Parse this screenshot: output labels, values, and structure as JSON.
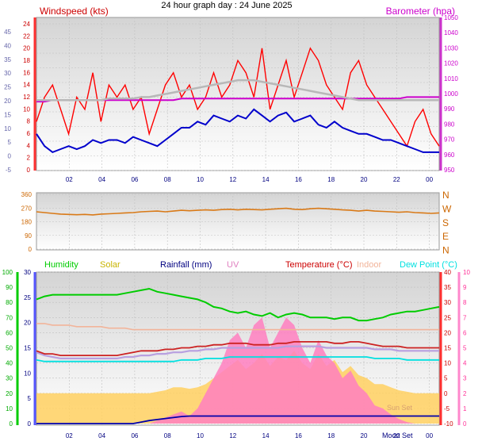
{
  "title": "24 hour graph day : 24 June 2025",
  "colors": {
    "gust": "#ff0000",
    "avg_wind": "#0000cc",
    "baro": "#cc00cc",
    "baro_avg": "#b8b8b8",
    "wind_dir": "#d97a18",
    "humidity": "#00cc00",
    "temperature": "#cc2222",
    "indoor": "#f2b49a",
    "dewpoint": "#00e0e0",
    "solar": "#ffd060",
    "uv": "#ff7fc0",
    "rainfall": "#0000aa",
    "mauve": "#b8a0e0"
  },
  "x_ticks": [
    "02",
    "04",
    "06",
    "08",
    "10",
    "12",
    "14",
    "16",
    "18",
    "20",
    "22",
    "00"
  ],
  "chart_data": [
    {
      "type": "line",
      "ylabel": "Windspeed (kts)",
      "y2label": "Barometer (hpa)",
      "y_left_kts": {
        "ticks": [
          "24",
          "22",
          "20",
          "18",
          "16",
          "14",
          "12",
          "10",
          "8",
          "6",
          "4",
          "2",
          "0"
        ],
        "ylim": [
          0,
          24
        ]
      },
      "y_left_mps": {
        "ticks": [
          "45",
          "40",
          "35",
          "30",
          "25",
          "20",
          "15",
          "10",
          "5",
          "0",
          "-5"
        ],
        "ylim": [
          -5,
          45
        ]
      },
      "y_right_hpa": {
        "ticks": [
          "1050",
          "1040",
          "1030",
          "1020",
          "1010",
          "1000",
          "990",
          "980",
          "970",
          "960",
          "950"
        ],
        "ylim": [
          950,
          1050
        ]
      },
      "series": [
        {
          "key": "gust",
          "values": [
            8,
            12,
            14,
            10,
            6,
            12,
            10,
            16,
            8,
            14,
            12,
            14,
            10,
            12,
            6,
            10,
            14,
            16,
            12,
            14,
            10,
            12,
            16,
            12,
            14,
            18,
            16,
            12,
            20,
            10,
            14,
            18,
            12,
            16,
            20,
            18,
            14,
            12,
            10,
            16,
            18,
            14,
            12,
            10,
            8,
            6,
            4,
            8,
            10,
            6,
            4
          ]
        },
        {
          "key": "avg_wind",
          "values": [
            6,
            4,
            3,
            3.5,
            4,
            3.5,
            4,
            5,
            4.5,
            5,
            5,
            4.5,
            5.5,
            5,
            4.5,
            4,
            5,
            6,
            7,
            7,
            8,
            7.5,
            9,
            8.5,
            8,
            9,
            8.5,
            10,
            9,
            8,
            9,
            9.5,
            8,
            8.5,
            9,
            7.5,
            7,
            8,
            7,
            6.5,
            6,
            6,
            5.5,
            5,
            5,
            4.5,
            4,
            3.5,
            3,
            3,
            3
          ]
        },
        {
          "key": "baro",
          "values": [
            995,
            995,
            996,
            996,
            996,
            996,
            996,
            996,
            996,
            996,
            996,
            996,
            996,
            996,
            996,
            996,
            996,
            996,
            997,
            997,
            997,
            997,
            997,
            997,
            997,
            997,
            997,
            997,
            997,
            997,
            997,
            997,
            997,
            997,
            997,
            997,
            997,
            997,
            997,
            997,
            997,
            997,
            997,
            997,
            997,
            997,
            998,
            998,
            998,
            998,
            998
          ]
        },
        {
          "key": "baro_avg",
          "values": [
            996,
            996,
            996,
            996,
            996,
            996,
            996,
            996,
            996,
            997,
            997,
            997,
            997,
            998,
            998,
            999,
            1000,
            1001,
            1002,
            1003,
            1004,
            1005,
            1006,
            1007,
            1008,
            1009,
            1009,
            1009,
            1008,
            1007,
            1006,
            1005,
            1004,
            1003,
            1002,
            1001,
            1000,
            999,
            998,
            997,
            996,
            996,
            996,
            996,
            996,
            996,
            996,
            996,
            996,
            996,
            996
          ]
        }
      ]
    },
    {
      "type": "line",
      "ylabel": "Wind direction",
      "y_ticks": [
        "360",
        "270",
        "180",
        "90",
        "0"
      ],
      "ylim": [
        0,
        360
      ],
      "compass": [
        "N",
        "W",
        "S",
        "E",
        "N"
      ],
      "series": [
        {
          "key": "wind_dir",
          "values": [
            245,
            240,
            235,
            230,
            228,
            226,
            228,
            225,
            230,
            232,
            235,
            238,
            240,
            245,
            248,
            250,
            245,
            250,
            255,
            252,
            255,
            258,
            255,
            260,
            262,
            258,
            262,
            260,
            258,
            262,
            265,
            268,
            262,
            260,
            265,
            268,
            265,
            262,
            258,
            255,
            250,
            255,
            250,
            248,
            245,
            242,
            245,
            240,
            238,
            235,
            238
          ]
        }
      ]
    },
    {
      "type": "line",
      "legend": [
        "Humidity",
        "Solar",
        "Rainfall (mm)",
        "UV",
        "Temperature (°C)",
        "Indoor",
        "Dew Point (°C)"
      ],
      "y_hum": {
        "ticks": [
          "100",
          "90",
          "80",
          "70",
          "60",
          "50",
          "40",
          "30",
          "20",
          "10",
          "0"
        ],
        "ylim": [
          0,
          100
        ]
      },
      "y_rain": {
        "ticks": [
          "30",
          "25",
          "20",
          "15",
          "10",
          "5",
          "0"
        ],
        "ylim": [
          0,
          30
        ]
      },
      "y_temp": {
        "ticks": [
          "40",
          "35",
          "30",
          "25",
          "20",
          "15",
          "10",
          "5",
          "0",
          "-5",
          "-10"
        ],
        "ylim": [
          -10,
          40
        ]
      },
      "y_uv": {
        "ticks": [
          "10",
          "9",
          "8",
          "7",
          "6",
          "5",
          "4",
          "3",
          "2",
          "1",
          "0"
        ],
        "ylim": [
          0,
          10
        ]
      },
      "annotations": [
        "Sun Set",
        "Moon Set"
      ],
      "series": [
        {
          "key": "humidity",
          "values": [
            82,
            84,
            85,
            85,
            85,
            85,
            85,
            85,
            85,
            85,
            85,
            86,
            87,
            88,
            89,
            87,
            86,
            85,
            84,
            83,
            82,
            80,
            77,
            76,
            74,
            73,
            74,
            72,
            71,
            73,
            70,
            72,
            73,
            72,
            70,
            70,
            70,
            69,
            70,
            70,
            68,
            68,
            69,
            70,
            72,
            73,
            74,
            74,
            75,
            76,
            77
          ]
        },
        {
          "key": "temperature",
          "values": [
            14,
            13,
            13,
            12.5,
            12.5,
            12.5,
            12.5,
            12.5,
            12.5,
            12.5,
            12.5,
            13,
            13.5,
            14,
            14,
            14,
            14.5,
            14.5,
            15,
            15,
            15.5,
            15.5,
            16,
            16,
            16.5,
            16.5,
            16.5,
            16,
            16,
            16,
            16.5,
            16.5,
            17,
            17,
            17,
            17,
            17,
            16.5,
            16.5,
            17,
            17,
            16.5,
            16,
            15.5,
            15.5,
            15.5,
            15,
            15,
            15,
            15,
            15
          ]
        },
        {
          "key": "mauve",
          "values": [
            13.5,
            12.5,
            12,
            11.5,
            11.5,
            11.5,
            11.5,
            11.5,
            11.5,
            11.5,
            11.5,
            12,
            12,
            12.5,
            12.5,
            13,
            13,
            13.5,
            13.5,
            14,
            14,
            14.5,
            14.5,
            15,
            15,
            15,
            15,
            15,
            15,
            15,
            15,
            15.5,
            15.5,
            15.5,
            15.5,
            15.5,
            15,
            15,
            15,
            15,
            15,
            15,
            14.5,
            14.5,
            14.5,
            14,
            14,
            14,
            14,
            14,
            14
          ]
        },
        {
          "key": "indoor",
          "values": [
            23,
            23,
            22.5,
            22.5,
            22.5,
            22,
            22,
            22,
            22,
            21.5,
            21.5,
            21.5,
            21,
            21,
            21,
            21,
            21,
            21,
            21,
            21,
            21,
            21,
            21,
            21,
            21,
            21,
            21,
            21,
            21,
            21,
            21,
            21,
            21,
            21,
            21,
            21,
            21,
            21,
            21,
            21,
            21,
            21,
            21,
            21,
            21,
            21,
            21,
            21,
            21,
            21,
            21
          ]
        },
        {
          "key": "dewpoint",
          "values": [
            11,
            10.5,
            10.5,
            10.5,
            10.5,
            10.5,
            10.5,
            10.5,
            10.5,
            10.5,
            10.5,
            10.5,
            10.5,
            10.5,
            10.5,
            10.5,
            10.5,
            10.5,
            11,
            11,
            11,
            11.5,
            11.5,
            11.5,
            12,
            12,
            12,
            12,
            12,
            12,
            12,
            12,
            12,
            12,
            12,
            12,
            12,
            12,
            12,
            12,
            12,
            12,
            11.5,
            11.5,
            11.5,
            11.5,
            11,
            11,
            11,
            11,
            11
          ]
        },
        {
          "key": "solar",
          "values": [
            0,
            0,
            0,
            0,
            0,
            0,
            0,
            0,
            0,
            0,
            0,
            0,
            0,
            0,
            0,
            0.5,
            1,
            2,
            2,
            1.5,
            2,
            3,
            5,
            7,
            9,
            11,
            8,
            10,
            13,
            9,
            12,
            11,
            14,
            10,
            8,
            13,
            9,
            11,
            7,
            9,
            6,
            5,
            3,
            3,
            2,
            1,
            0.5,
            0,
            0,
            0,
            0
          ]
        },
        {
          "key": "uv",
          "values": [
            0,
            0,
            0,
            0,
            0,
            0,
            0,
            0,
            0,
            0,
            0,
            0,
            0,
            0,
            0,
            0.2,
            0.4,
            0.6,
            0.8,
            0.5,
            1,
            2,
            3,
            4,
            5.5,
            6,
            5,
            6.5,
            7,
            5,
            6,
            7,
            6.5,
            5,
            4,
            5.5,
            4.5,
            4,
            3,
            3.5,
            2.5,
            2,
            1.2,
            1,
            0.6,
            0.3,
            0.1,
            0,
            0,
            0,
            0
          ]
        },
        {
          "key": "rainfall",
          "values": [
            0,
            0,
            0,
            0,
            0,
            0,
            0,
            0,
            0,
            0,
            0,
            0,
            0,
            0.3,
            0.6,
            0.8,
            1,
            1.2,
            1.4,
            1.5,
            1.5,
            1.5,
            1.5,
            1.5,
            1.5,
            1.5,
            1.5,
            1.5,
            1.5,
            1.5,
            1.5,
            1.5,
            1.5,
            1.5,
            1.5,
            1.5,
            1.5,
            1.5,
            1.5,
            1.5,
            1.5,
            1.5,
            1.5,
            1.5,
            1.5,
            1.5,
            1.5,
            1.5,
            1.5,
            1.5,
            1.5
          ]
        }
      ]
    }
  ]
}
